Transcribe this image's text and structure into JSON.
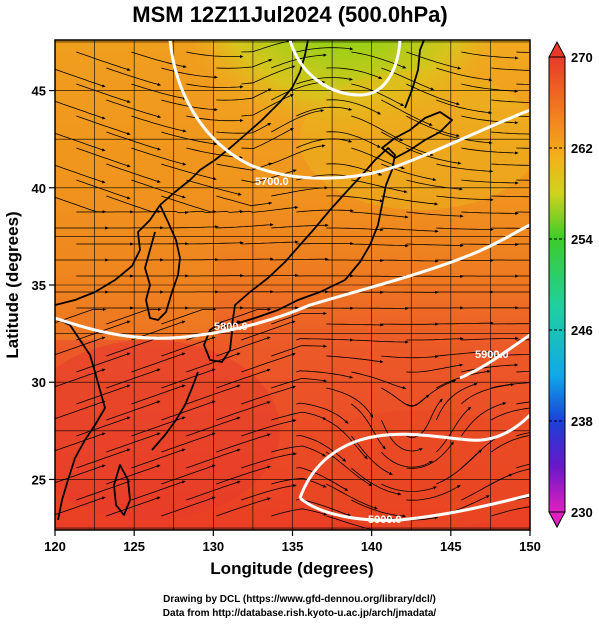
{
  "title": "MSM 12Z11Jul2024 (500.0hPa)",
  "x_axis": {
    "label": "Longitude (degrees)",
    "range": [
      120,
      150
    ],
    "ticks": [
      120,
      125,
      130,
      135,
      140,
      145,
      150
    ]
  },
  "y_axis": {
    "label": "Latitude  (degrees)",
    "range": [
      22.4,
      47.6
    ],
    "ticks": [
      25,
      30,
      35,
      40,
      45
    ]
  },
  "colorbar": {
    "min": 230,
    "max": 270,
    "ticks": [
      270,
      262,
      254,
      246,
      238,
      230
    ]
  },
  "contours": [
    {
      "label": "5700.0"
    },
    {
      "label": "5800.0"
    },
    {
      "label": "5900.0"
    },
    {
      "label": "5900.0"
    }
  ],
  "footer": {
    "line1": "Drawing by DCL (https://www.gfd-dennou.org/library/dcl/)",
    "line2": "Data from http://database.rish.kyoto-u.ac.jp/arch/jmadata/"
  },
  "colors": {
    "contour": "#ffffff",
    "streamline": "#000000",
    "coast": "#000000"
  }
}
